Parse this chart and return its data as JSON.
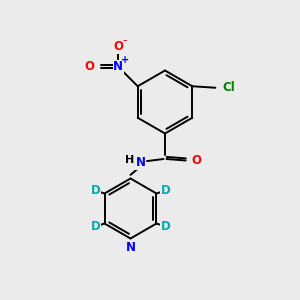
{
  "background_color": "#ebebeb",
  "bond_color": "#000000",
  "atom_colors": {
    "N": "#0000ff",
    "O": "#ff0000",
    "Cl": "#008000",
    "D": "#00aaaa",
    "H": "#000000"
  },
  "lw": 1.4,
  "fs": 8.5
}
